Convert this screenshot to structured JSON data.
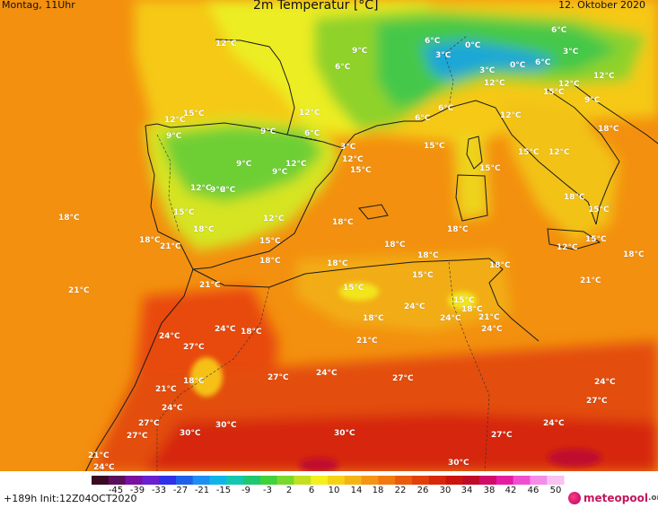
{
  "header": {
    "date_time": "Montag, 11Uhr",
    "title": "2m Temperatur [°C]",
    "date": "12. Oktober 2020"
  },
  "footer": {
    "run_info": "+189h  Init:12Z04OCT2020",
    "brand_name": "meteopool",
    "brand_tld": ".org"
  },
  "legend": {
    "ticks": [
      "-45",
      "-39",
      "-33",
      "-27",
      "-21",
      "-15",
      "-9",
      "-3",
      "2",
      "6",
      "10",
      "14",
      "18",
      "22",
      "26",
      "30",
      "34",
      "38",
      "42",
      "46",
      "50"
    ],
    "colors": [
      "#3a0a24",
      "#5a0f5a",
      "#7a10a0",
      "#6a1fd0",
      "#3030e8",
      "#2060e8",
      "#1c8ff0",
      "#12b4e8",
      "#14c8b0",
      "#1cc870",
      "#3fd23c",
      "#7ad82c",
      "#c2e020",
      "#f4f020",
      "#f6d214",
      "#f6b414",
      "#f49514",
      "#f07a10",
      "#ea5a0c",
      "#e2400a",
      "#d8280c",
      "#cc140e",
      "#c00a2a",
      "#d00c6a",
      "#e41ca4",
      "#f04ed0",
      "#f48ce8",
      "#f8c2f2"
    ]
  },
  "map": {
    "region": "Western Mediterranean",
    "labels": [
      {
        "id": "c01",
        "text": "12°C"
      },
      {
        "id": "c02",
        "text": "9°C"
      },
      {
        "id": "c03",
        "text": "6°C"
      },
      {
        "id": "c04",
        "text": "6°C"
      },
      {
        "id": "c05",
        "text": "0°C"
      },
      {
        "id": "c06",
        "text": "6°C"
      },
      {
        "id": "c07",
        "text": "3°C"
      },
      {
        "id": "c08",
        "text": "3°C"
      },
      {
        "id": "c09",
        "text": "0°C"
      },
      {
        "id": "c10",
        "text": "6°C"
      },
      {
        "id": "c11",
        "text": "3°C"
      },
      {
        "id": "c12",
        "text": "12°C"
      },
      {
        "id": "c13",
        "text": "12°C"
      },
      {
        "id": "c14",
        "text": "12°C"
      },
      {
        "id": "c15",
        "text": "15°C"
      },
      {
        "id": "c16",
        "text": "12°C"
      },
      {
        "id": "c17",
        "text": "9°C"
      },
      {
        "id": "c18",
        "text": "15°C"
      },
      {
        "id": "c19",
        "text": "12°C"
      },
      {
        "id": "c20",
        "text": "6°C"
      },
      {
        "id": "c21",
        "text": "6°C"
      },
      {
        "id": "c22",
        "text": "12°C"
      },
      {
        "id": "c23",
        "text": "9°C"
      },
      {
        "id": "c24",
        "text": "9°C"
      },
      {
        "id": "c25",
        "text": "6°C"
      },
      {
        "id": "c26",
        "text": "3°C"
      },
      {
        "id": "c27",
        "text": "15°C"
      },
      {
        "id": "c28",
        "text": "15°C"
      },
      {
        "id": "c29",
        "text": "12°C"
      },
      {
        "id": "c30",
        "text": "15°C"
      },
      {
        "id": "c31",
        "text": "18°C"
      },
      {
        "id": "c32",
        "text": "9°C"
      },
      {
        "id": "c33",
        "text": "12°C"
      },
      {
        "id": "c34",
        "text": "9°C"
      },
      {
        "id": "c35",
        "text": "12°C"
      },
      {
        "id": "c36",
        "text": "15°C"
      },
      {
        "id": "c37",
        "text": "9°C"
      },
      {
        "id": "c38",
        "text": "12°C"
      },
      {
        "id": "c39",
        "text": "9°C"
      },
      {
        "id": "c40",
        "text": "15°C"
      },
      {
        "id": "c41",
        "text": "18°C"
      },
      {
        "id": "c42",
        "text": "15°C"
      },
      {
        "id": "c43",
        "text": "12°C"
      },
      {
        "id": "c44",
        "text": "12°C"
      },
      {
        "id": "c45",
        "text": "18°C"
      },
      {
        "id": "c46",
        "text": "18°C"
      },
      {
        "id": "c47",
        "text": "15°C"
      },
      {
        "id": "c48",
        "text": "18°C"
      },
      {
        "id": "c49",
        "text": "18°C"
      },
      {
        "id": "c50",
        "text": "18°C"
      },
      {
        "id": "c51",
        "text": "18°C"
      },
      {
        "id": "c52",
        "text": "21°C"
      },
      {
        "id": "c53",
        "text": "15°C"
      },
      {
        "id": "c54",
        "text": "18°C"
      },
      {
        "id": "c55",
        "text": "18°C"
      },
      {
        "id": "c56",
        "text": "18°C"
      },
      {
        "id": "c57",
        "text": "18°C"
      },
      {
        "id": "c58",
        "text": "18°C"
      },
      {
        "id": "c59",
        "text": "21°C"
      },
      {
        "id": "c60",
        "text": "21°C"
      },
      {
        "id": "c61",
        "text": "15°C"
      },
      {
        "id": "c62",
        "text": "21°C"
      },
      {
        "id": "c63",
        "text": "15°C"
      },
      {
        "id": "c64",
        "text": "15°C"
      },
      {
        "id": "c65",
        "text": "18°C"
      },
      {
        "id": "c66",
        "text": "21°C"
      },
      {
        "id": "c67",
        "text": "18°C"
      },
      {
        "id": "c68",
        "text": "24°C"
      },
      {
        "id": "c69",
        "text": "24°C"
      },
      {
        "id": "c70",
        "text": "24°C"
      },
      {
        "id": "c71",
        "text": "24°C"
      },
      {
        "id": "c72",
        "text": "18°C"
      },
      {
        "id": "c73",
        "text": "24°C"
      },
      {
        "id": "c74",
        "text": "27°C"
      },
      {
        "id": "c75",
        "text": "21°C"
      },
      {
        "id": "c76",
        "text": "18°C"
      },
      {
        "id": "c77",
        "text": "27°C"
      },
      {
        "id": "c78",
        "text": "24°C"
      },
      {
        "id": "c79",
        "text": "27°C"
      },
      {
        "id": "c80",
        "text": "21°C"
      },
      {
        "id": "c81",
        "text": "24°C"
      },
      {
        "id": "c82",
        "text": "24°C"
      },
      {
        "id": "c83",
        "text": "27°C"
      },
      {
        "id": "c84",
        "text": "27°C"
      },
      {
        "id": "c85",
        "text": "30°C"
      },
      {
        "id": "c86",
        "text": "30°C"
      },
      {
        "id": "c87",
        "text": "30°C"
      },
      {
        "id": "c88",
        "text": "27°C"
      },
      {
        "id": "c89",
        "text": "24°C"
      },
      {
        "id": "c90",
        "text": "21°C"
      },
      {
        "id": "c91",
        "text": "24°C"
      },
      {
        "id": "c92",
        "text": "27°C"
      },
      {
        "id": "c93",
        "text": "30°C"
      }
    ]
  }
}
